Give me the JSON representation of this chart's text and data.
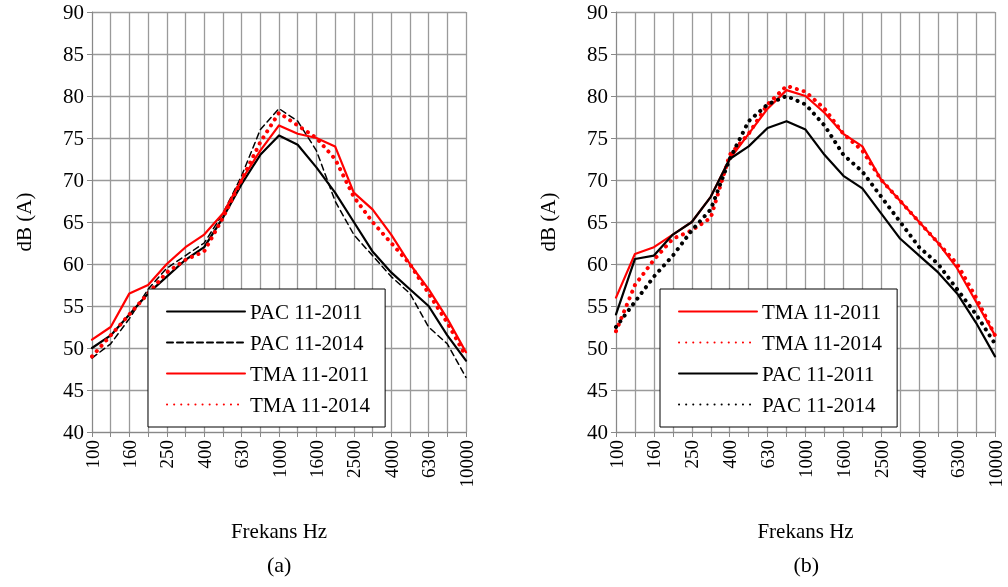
{
  "chart_data": [
    {
      "type": "line",
      "xlabel": "Frekans Hz",
      "ylabel": "dB (A)",
      "annotations": [
        "(a)"
      ],
      "categories": [
        "100",
        null,
        "160",
        null,
        "250",
        null,
        "400",
        null,
        "630",
        null,
        "1000",
        null,
        "1600",
        null,
        "2500",
        null,
        "4000",
        null,
        "6300",
        null,
        "10000"
      ],
      "ylim": [
        40,
        90
      ],
      "yticks": [
        40,
        45,
        50,
        55,
        60,
        65,
        70,
        75,
        80,
        85,
        90
      ],
      "grid": true,
      "legend": "bottom",
      "marker": "none",
      "series": [
        {
          "name": "PAC 11-2011",
          "color": "#000000",
          "line_style": "solid",
          "values": [
            50,
            51.5,
            54,
            56.5,
            58.5,
            60.5,
            62,
            65.5,
            69.5,
            73,
            75.3,
            74.2,
            71.5,
            68.5,
            65,
            61.5,
            59,
            57,
            55,
            51.5,
            48.5
          ]
        },
        {
          "name": "PAC 11-2014",
          "color": "#000000",
          "line_style": "dashed",
          "values": [
            48.8,
            50.5,
            53.5,
            57,
            59.5,
            61,
            62.5,
            66,
            70.5,
            76,
            78.5,
            77,
            73.5,
            67.5,
            63.5,
            61,
            58.5,
            56.5,
            52.5,
            50.5,
            46.5
          ]
        },
        {
          "name": "TMA 11-2011",
          "color": "#ff0000",
          "line_style": "solid",
          "values": [
            51,
            52.5,
            56.5,
            57.5,
            60,
            62,
            63.5,
            66,
            70,
            73.5,
            76.5,
            75.5,
            75,
            74,
            68.5,
            66.5,
            63.5,
            60,
            57,
            53.5,
            49.5
          ]
        },
        {
          "name": "TMA 11-2014",
          "color": "#ff0000",
          "line_style": "dotted",
          "values": [
            49,
            51.5,
            54,
            56.5,
            59,
            60.5,
            61.5,
            65.5,
            70,
            74.5,
            78,
            76.5,
            75,
            72.5,
            68,
            65,
            62.5,
            60,
            56.5,
            53,
            49
          ]
        }
      ]
    },
    {
      "type": "line",
      "xlabel": "Frekans Hz",
      "ylabel": "dB (A)",
      "annotations": [
        "(b)"
      ],
      "categories": [
        "100",
        null,
        "160",
        null,
        "250",
        null,
        "400",
        null,
        "630",
        null,
        "1000",
        null,
        "1600",
        null,
        "2500",
        null,
        "4000",
        null,
        "6300",
        null,
        "10000"
      ],
      "ylim": [
        40,
        90
      ],
      "yticks": [
        40,
        45,
        50,
        55,
        60,
        65,
        70,
        75,
        80,
        85,
        90
      ],
      "grid": true,
      "legend": "bottom",
      "marker": "none",
      "series": [
        {
          "name": "TMA 11-2011",
          "color": "#ff0000",
          "line_style": "solid",
          "values": [
            56,
            61.2,
            62,
            63.5,
            65,
            68,
            72.5,
            75.5,
            78.5,
            80.7,
            80,
            78,
            75.5,
            74,
            70,
            67.5,
            65,
            62.5,
            59.5,
            55.5,
            51.5
          ]
        },
        {
          "name": "TMA 11-2014",
          "color": "#ff0000",
          "line_style": "dotted",
          "values": [
            52,
            57.5,
            60.5,
            63,
            64,
            65.5,
            73,
            75.5,
            79,
            81.2,
            80.5,
            78.5,
            75.5,
            73.5,
            70,
            67.5,
            65,
            62.5,
            60,
            56,
            51.5
          ]
        },
        {
          "name": "PAC 11-2011",
          "color": "#000000",
          "line_style": "solid",
          "values": [
            54,
            60.6,
            61,
            63.5,
            65,
            68,
            72.5,
            74,
            76.2,
            77,
            76,
            73,
            70.5,
            69,
            66,
            63,
            61,
            59,
            56.5,
            53,
            49
          ]
        },
        {
          "name": "PAC 11-2014",
          "color": "#000000",
          "line_style": "dotted",
          "values": [
            52.5,
            55.5,
            58.5,
            61,
            64,
            66.5,
            72.5,
            77,
            79,
            80,
            79,
            76.5,
            73,
            71,
            68,
            65,
            62,
            60,
            57,
            54,
            50.5
          ]
        }
      ]
    }
  ]
}
